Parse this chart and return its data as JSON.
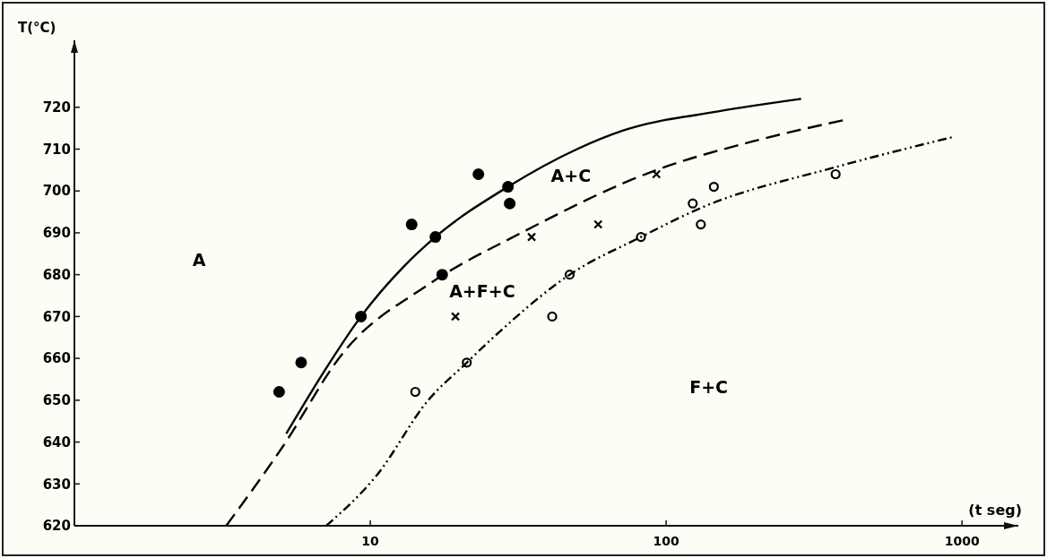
{
  "chart_data": {
    "type": "scatter",
    "xlabel": "(t seg)",
    "ylabel": "T(°C)",
    "log": "x",
    "xlim": [
      1,
      1550
    ],
    "xticks": [
      10,
      100,
      1000
    ],
    "ylim": [
      620,
      736
    ],
    "yticks": [
      620,
      630,
      640,
      650,
      660,
      670,
      680,
      690,
      700,
      710,
      720
    ],
    "grid": false,
    "series": [
      {
        "marker": "circle",
        "color": "#000000",
        "x": [
          4.92,
          5.84,
          9.3,
          13.8,
          16.6,
          17.5,
          23.2,
          29.2,
          29.6
        ],
        "values": [
          652,
          659,
          670,
          692,
          689,
          680,
          704,
          701,
          697
        ]
      },
      {
        "marker": "cross",
        "color": "#000000",
        "x": [
          19.4,
          35.1,
          58.9,
          92.7
        ],
        "values": [
          670,
          689,
          692,
          704
        ]
      },
      {
        "marker": "circle",
        "color": "#000000",
        "x": [
          14.2,
          21.2,
          41.2,
          47.2,
          82.2,
          123,
          131,
          145,
          374
        ],
        "values": [
          652,
          659,
          670,
          680,
          689,
          697,
          692,
          701,
          704
        ]
      },
      {
        "type": "line",
        "line_style": "solid",
        "marker": "none",
        "color": "#000000",
        "x": [
          5.2,
          7,
          9.3,
          13,
          16.6,
          29.2,
          50,
          72,
          150,
          286
        ],
        "values": [
          642,
          657,
          670,
          682,
          689,
          701,
          710,
          714.5,
          719,
          722
        ]
      },
      {
        "type": "line",
        "line_style": "dashed",
        "marker": "none",
        "color": "#000000",
        "x": [
          3.26,
          5.07,
          8.03,
          15.7,
          32.4,
          92.7,
          200,
          403
        ],
        "values": [
          620,
          639,
          661,
          677.6,
          690,
          705,
          712,
          717
        ]
      },
      {
        "type": "line",
        "line_style": "dotted",
        "marker": "none",
        "color": "#000000",
        "x": [
          7.1,
          10.5,
          15.7,
          21.2,
          27,
          47.2,
          82.2,
          131.6,
          374,
          946
        ],
        "values": [
          620,
          632,
          650,
          659,
          666,
          680,
          689,
          696,
          705.7,
          713
        ]
      }
    ],
    "annotations": [
      "A",
      "A+F+C",
      "A+C",
      "F+C"
    ]
  }
}
